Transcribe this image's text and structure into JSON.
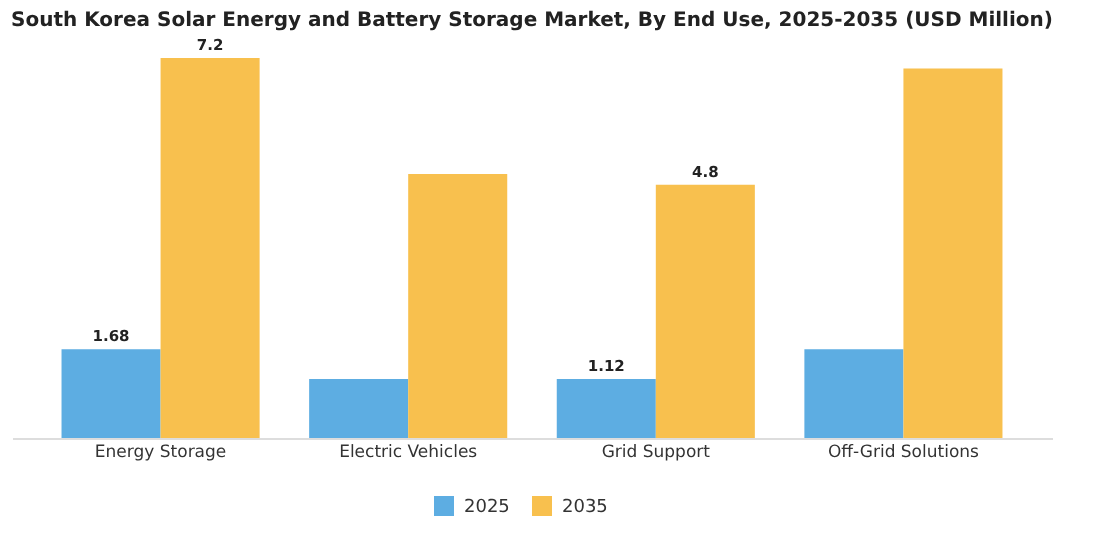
{
  "chart_data": {
    "type": "bar",
    "title": "South Korea Solar Energy and Battery Storage Market, By End Use, 2025-2035 (USD Million)",
    "categories": [
      "Energy Storage",
      "Electric Vehicles",
      "Grid Support",
      "Off-Grid Solutions"
    ],
    "series": [
      {
        "name": "2025",
        "color": "#5dade2",
        "values": [
          1.68,
          1.12,
          1.12,
          1.68
        ],
        "value_labels": [
          "1.68",
          null,
          "1.12",
          null
        ]
      },
      {
        "name": "2035",
        "color": "#f8c04e",
        "values": [
          7.2,
          5.0,
          4.8,
          7.0
        ],
        "value_labels": [
          "7.2",
          null,
          "4.8",
          null
        ]
      }
    ],
    "tick_labels": "x",
    "legend": "bottom"
  }
}
